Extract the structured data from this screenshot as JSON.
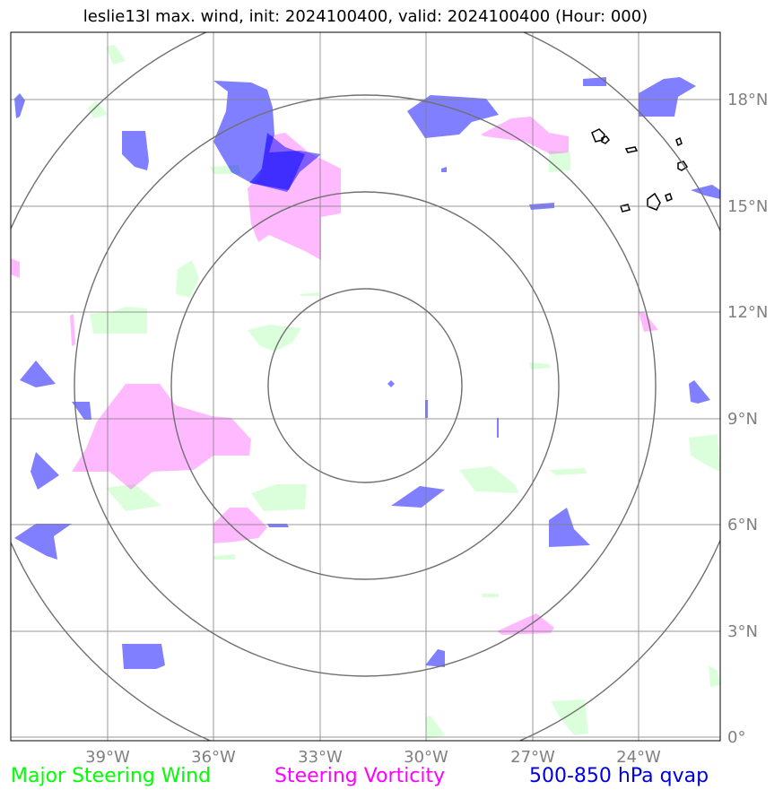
{
  "title": "leslie13l max. wind, init: 2024100400, valid: 2024100400 (Hour: 000)",
  "axes": {
    "lon_ticks": [
      "39°W",
      "36°W",
      "33°W",
      "30°W",
      "27°W",
      "24°W"
    ],
    "lat_ticks": [
      "18°N",
      "15°N",
      "12°N",
      "9°N",
      "6°N",
      "3°N",
      "0°"
    ]
  },
  "legend": {
    "steering_wind": "Major Steering Wind",
    "vorticity": "Steering Vorticity",
    "qvap": "500-850 hPa qvap"
  },
  "colors": {
    "steering_wind": "#00ff00",
    "vorticity": "#ff00ff",
    "qvap": "#0000ff",
    "grid": "#808080"
  }
}
